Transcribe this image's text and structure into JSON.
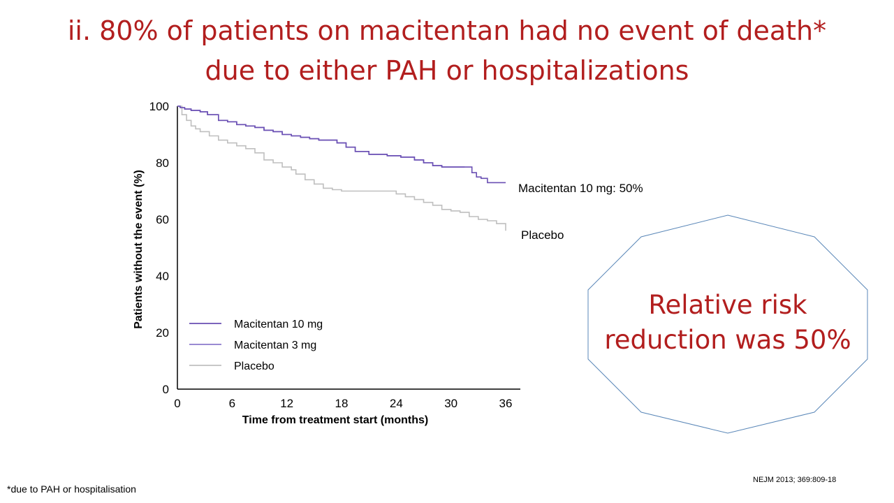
{
  "title": {
    "line1": "ii. 80% of patients on macitentan had no event of death*",
    "line2": "due to either PAH or hospitalizations",
    "color": "#b21e1e"
  },
  "callout": {
    "line1": "Relative risk",
    "line2": "reduction was 50%"
  },
  "footnote": "*due to PAH or hospitalisation",
  "citation": "NEJM 2013; 369:809-18",
  "chart_data": {
    "type": "line",
    "step": true,
    "xlabel": "Time from treatment start (months)",
    "ylabel": "Patients without  the event (%)",
    "xlim": [
      0,
      36
    ],
    "ylim": [
      0,
      100
    ],
    "xticks": [
      0,
      6,
      12,
      18,
      24,
      30,
      36
    ],
    "yticks": [
      0,
      20,
      40,
      60,
      80,
      100
    ],
    "grid": false,
    "legend": {
      "placement": "lower-left",
      "entries": [
        {
          "label": "Macitentan 10 mg",
          "color": "#6a4fb3"
        },
        {
          "label": "Macitentan 3 mg",
          "color": "#8c79cc"
        },
        {
          "label": "Placebo",
          "color": "#bfbfbf"
        }
      ]
    },
    "annotations": [
      {
        "text": "Macitentan 10 mg:  50%",
        "series": "Macitentan 10 mg"
      },
      {
        "text": "Placebo",
        "series": "Placebo"
      }
    ],
    "series": [
      {
        "name": "Macitentan 10 mg",
        "color": "#6a4fb3",
        "x": [
          0,
          0.3,
          0.8,
          1.5,
          2.5,
          3.3,
          4.5,
          5.5,
          6.5,
          7.5,
          8.5,
          9.5,
          10.5,
          11.5,
          12.5,
          13.5,
          14.5,
          15.5,
          16.5,
          17.5,
          18.5,
          19.5,
          21,
          23,
          24.5,
          26,
          27,
          28,
          29,
          31.5,
          32.3,
          32.8,
          33.3,
          34,
          36
        ],
        "y": [
          100,
          99.5,
          99,
          98.5,
          98,
          97,
          95,
          94.5,
          93.5,
          93,
          92.5,
          91.5,
          91,
          90,
          89.5,
          89,
          88.5,
          88,
          88,
          87,
          85.5,
          84,
          83,
          82.5,
          82,
          81,
          80,
          79,
          78.5,
          78.5,
          76.5,
          75,
          74.5,
          73,
          73
        ]
      },
      {
        "name": "Macitentan 3 mg",
        "color": "#8c79cc",
        "x": [
          0,
          0.3,
          0.8,
          1.5,
          2.5,
          3.3,
          4.5,
          5.5,
          6.5,
          7.5,
          8.5,
          9.5,
          10.5,
          11.5,
          12.5,
          13.5,
          14.5,
          15.5,
          16.5,
          17.5,
          18.5,
          19.5,
          21,
          23,
          24.5,
          26,
          27,
          28,
          29,
          31.5
        ],
        "y": [
          100,
          99.5,
          99,
          98.5,
          98,
          97,
          95,
          94.5,
          93.5,
          93,
          92.5,
          91.5,
          91,
          90,
          89.5,
          89,
          88.5,
          88,
          88,
          87,
          85.5,
          84,
          83,
          82.5,
          82,
          81,
          80,
          79,
          78.5,
          78.5
        ]
      },
      {
        "name": "Placebo",
        "color": "#bfbfbf",
        "x": [
          0,
          0.5,
          1,
          1.5,
          2,
          2.5,
          3.5,
          4.5,
          5.5,
          6.5,
          7.5,
          8.5,
          9.5,
          10.5,
          11.5,
          12.5,
          13,
          14,
          15,
          16,
          17,
          18,
          19,
          20,
          22,
          23,
          24,
          25,
          26,
          27,
          28,
          29,
          30,
          31,
          32,
          33,
          34,
          35,
          36
        ],
        "y": [
          100,
          97,
          95,
          93,
          92,
          91,
          89.5,
          88,
          87,
          86,
          85,
          83.5,
          81,
          80,
          78.5,
          77.5,
          76,
          74,
          72.5,
          71,
          70.5,
          70,
          70,
          70,
          70,
          70,
          69,
          68,
          67,
          66,
          65,
          63.5,
          63,
          62.5,
          61,
          60,
          59.5,
          58.5,
          56
        ]
      }
    ]
  }
}
